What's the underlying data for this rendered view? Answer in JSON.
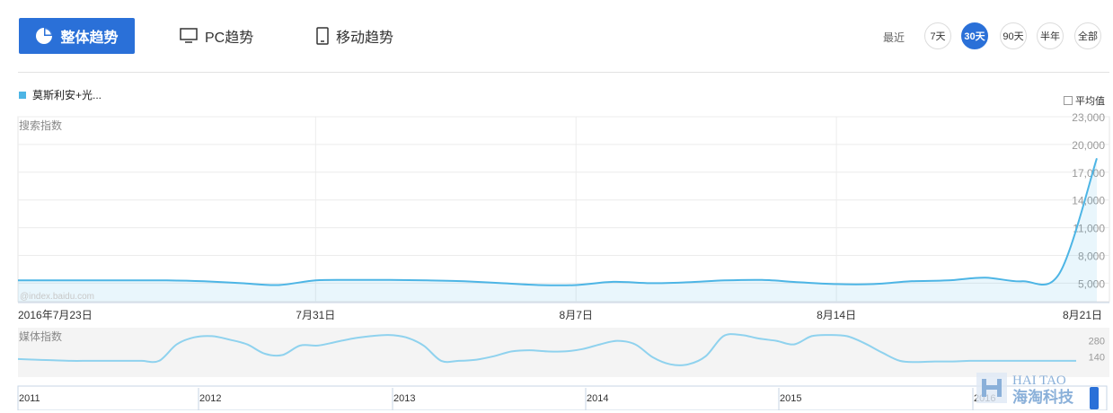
{
  "tabs": {
    "overall": "整体趋势",
    "pc": "PC趋势",
    "mobile": "移动趋势"
  },
  "range": {
    "label": "最近",
    "options": [
      "7天",
      "30天",
      "90天",
      "半年",
      "全部"
    ],
    "active_index": 1
  },
  "legend": {
    "series_name": "莫斯利安+光..."
  },
  "average_toggle": {
    "label": "平均值",
    "checked": false
  },
  "colors": {
    "accent": "#2a70d8",
    "series": "#4db5e5",
    "media_series": "#8fd2ee"
  },
  "watermark": {
    "text": "@index.baidu.com"
  },
  "logo": {
    "en": "HAI TAO",
    "cn": "海淘科技"
  },
  "chart_data": [
    {
      "type": "area",
      "ylabel": "搜索指数",
      "yticks": [
        "23,000",
        "20,000",
        "17,000",
        "14,000",
        "11,000",
        "8,000",
        "5,000"
      ],
      "ylim": [
        3000,
        23000
      ],
      "xtick_labels": [
        "2016年7月23日",
        "7月31日",
        "8月7日",
        "8月14日",
        "8月21日"
      ],
      "grid": true,
      "series": [
        {
          "name": "莫斯利安+光...",
          "x": [
            "2016-07-23",
            "2016-07-24",
            "2016-07-25",
            "2016-07-26",
            "2016-07-27",
            "2016-07-28",
            "2016-07-29",
            "2016-07-30",
            "2016-07-31",
            "2016-08-01",
            "2016-08-02",
            "2016-08-03",
            "2016-08-04",
            "2016-08-05",
            "2016-08-06",
            "2016-08-07",
            "2016-08-08",
            "2016-08-09",
            "2016-08-10",
            "2016-08-11",
            "2016-08-12",
            "2016-08-13",
            "2016-08-14",
            "2016-08-15",
            "2016-08-16",
            "2016-08-17",
            "2016-08-18",
            "2016-08-19",
            "2016-08-20",
            "2016-08-21"
          ],
          "values": [
            5300,
            5300,
            5300,
            5300,
            5300,
            5200,
            5000,
            4800,
            5300,
            5350,
            5350,
            5300,
            5200,
            5000,
            4800,
            4800,
            5150,
            5000,
            5100,
            5300,
            5350,
            5100,
            4900,
            4900,
            5200,
            5300,
            5600,
            5200,
            6100,
            18500
          ]
        }
      ]
    },
    {
      "type": "area",
      "ylabel": "媒体指数",
      "yticks": [
        "280",
        "140"
      ],
      "ylim": [
        0,
        420
      ],
      "xtick_labels": [
        "2011",
        "2012",
        "2013",
        "2014",
        "2015",
        "2016"
      ],
      "series": [
        {
          "name": "媒体指数",
          "x": [
            0,
            1,
            2,
            3,
            4,
            5,
            6,
            7,
            8,
            9,
            10,
            11,
            12,
            13,
            14,
            15,
            16,
            17,
            18,
            19,
            20,
            21,
            22,
            23,
            24,
            25,
            26,
            27,
            28,
            29,
            30,
            31,
            32,
            33,
            34,
            35,
            36,
            37,
            38,
            39,
            40,
            41,
            42,
            43,
            44,
            45,
            46,
            47,
            48,
            49,
            50,
            51,
            52,
            53,
            54,
            55,
            56,
            57,
            58,
            59,
            60
          ],
          "values": [
            115,
            110,
            105,
            100,
            100,
            100,
            100,
            100,
            100,
            240,
            300,
            310,
            280,
            240,
            160,
            150,
            230,
            230,
            260,
            290,
            310,
            320,
            300,
            230,
            100,
            100,
            110,
            140,
            180,
            190,
            180,
            180,
            200,
            240,
            270,
            240,
            130,
            70,
            70,
            140,
            310,
            320,
            290,
            270,
            240,
            310,
            320,
            310,
            250,
            170,
            100,
            90,
            95,
            95,
            100,
            100,
            100,
            100,
            100,
            100,
            100
          ]
        }
      ]
    }
  ]
}
